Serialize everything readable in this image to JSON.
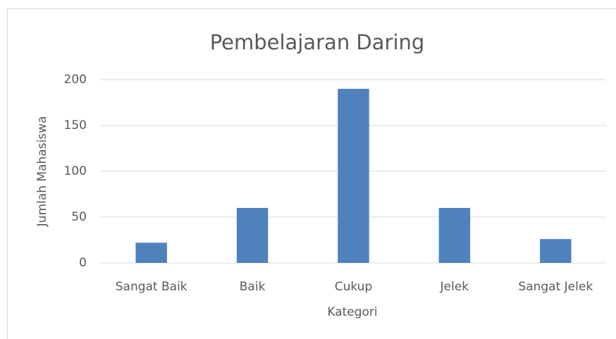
{
  "chart_data": {
    "type": "bar",
    "title": "Pembelajaran Daring",
    "x_label": "Kategori",
    "y_label": "Jumlah Mahasiswa",
    "categories": [
      "Sangat Baik",
      "Baik",
      "Cukup",
      "Jelek",
      "Sangat Jelek"
    ],
    "values": [
      22,
      60,
      190,
      60,
      26
    ],
    "color": "#4f81bd",
    "ylim": [
      0,
      200
    ],
    "yticks": [
      0,
      50,
      100,
      150,
      200
    ],
    "grid": true
  }
}
